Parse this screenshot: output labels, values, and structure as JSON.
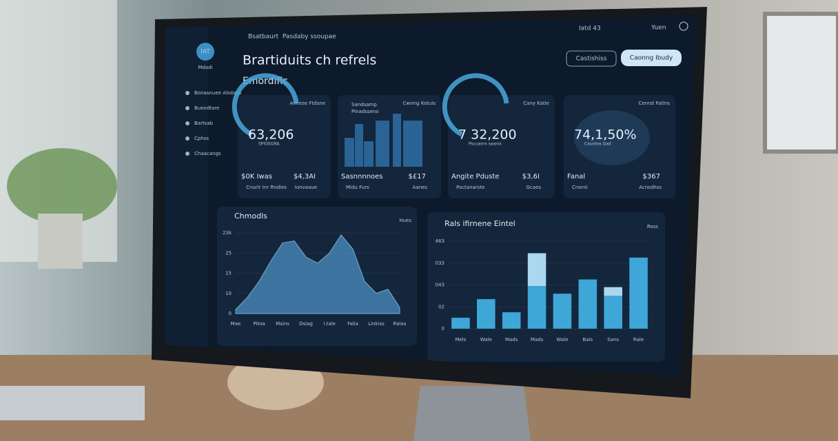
{
  "topbar": {
    "breadcrumb": "Bsatbaurt",
    "crumb": "Pasdaby ssoupae",
    "status": "Iatd 43",
    "user": "Yuen"
  },
  "header": {
    "title": "Brartiduits ch refrels",
    "subtitle": "Emordific",
    "button_secondary": "Castishiss",
    "button_primary": "Caonng Ibudy"
  },
  "sidebar": {
    "logo": "IAT",
    "logo_caption": "Mdadi",
    "items": [
      "Bonasnuee Alsdaes",
      "Bueodtare",
      "Bartsab",
      "Cphss",
      "Chaacangs"
    ]
  },
  "cards": [
    {
      "label": "Aneese Ftdsne",
      "value": "63,206",
      "caption": "SPIOSGRA",
      "foot_left": "$0K Iwas",
      "foot_right": "$4,3AI",
      "legend_left": "Cnurir Inr Rndies",
      "legend_right": "Ionvaaue"
    },
    {
      "label": "Cwnng Kotuis",
      "value": "Sandsamp",
      "caption": "Pinadsseno",
      "foot_left": "Sasnnnnoes",
      "foot_right": "$£17",
      "legend_left": "Midu Furs",
      "legend_right": "Aanes"
    },
    {
      "label": "Cany Katle",
      "value": "7 32,200",
      "caption": "Pscuanrs saanis",
      "foot_left": "Angite Pduste",
      "foot_right": "$3,6I",
      "legend_left": "Pactanarste",
      "legend_right": "Gcaes"
    },
    {
      "label": "Cenrst Fatins",
      "value": "74,1,50%",
      "caption": "Cauntos Gad",
      "foot_left": "Fanal",
      "foot_right": "$367",
      "legend_left": "Cnorni",
      "legend_right": "Acnsdhss"
    }
  ],
  "area_chart": {
    "type": "area",
    "title": "Chmodls",
    "corner_label": "Hues",
    "color": "#4a8fc0",
    "x": [
      0,
      1,
      2,
      3,
      4,
      5,
      6,
      7,
      8,
      9,
      10,
      11,
      12,
      13,
      14
    ],
    "values": [
      0.2,
      0.8,
      1.6,
      2.6,
      3.5,
      3.6,
      2.8,
      2.5,
      3.0,
      3.9,
      3.2,
      1.6,
      1.0,
      1.2,
      0.3
    ],
    "xlim": [
      0,
      14
    ],
    "xticks": [
      {
        "value": 0,
        "label": "Mae"
      },
      {
        "value": 2,
        "label": "Pitoa"
      },
      {
        "value": 4,
        "label": "Msins"
      },
      {
        "value": 6,
        "label": "Dsiag"
      },
      {
        "value": 8,
        "label": "I.tale"
      },
      {
        "value": 10,
        "label": "Falia"
      },
      {
        "value": 12,
        "label": "Linkiss"
      },
      {
        "value": 14,
        "label": "Ralas"
      }
    ],
    "ylim": [
      0,
      4
    ],
    "yticks": [
      {
        "value": 0,
        "label": "0"
      },
      {
        "value": 1,
        "label": "10"
      },
      {
        "value": 2,
        "label": "15"
      },
      {
        "value": 3,
        "label": "25"
      },
      {
        "value": 4,
        "label": "23k"
      }
    ],
    "grid": true
  },
  "bar_chart": {
    "type": "bar",
    "title": "Rals ifirnene Eintel",
    "corner_label": "Ross",
    "categories": [
      "Mels",
      "Wale",
      "Mads",
      "Mads",
      "Wale",
      "Bals",
      "Sans",
      "Rale"
    ],
    "series": [
      {
        "color": "#3fa6d8",
        "values": [
          0.5,
          1.35,
          0.75,
          1.95,
          1.6,
          2.25,
          1.5,
          3.25
        ]
      },
      {
        "color": "#a9d8f0",
        "values": [
          0,
          0,
          0,
          1.5,
          0,
          0,
          0.4,
          0
        ]
      }
    ],
    "ylim": [
      0,
      4
    ],
    "yticks": [
      {
        "value": 0,
        "label": "0"
      },
      {
        "value": 1,
        "label": "02"
      },
      {
        "value": 2,
        "label": "043"
      },
      {
        "value": 3,
        "label": "033"
      },
      {
        "value": 4,
        "label": "463"
      }
    ],
    "grid": true
  }
}
